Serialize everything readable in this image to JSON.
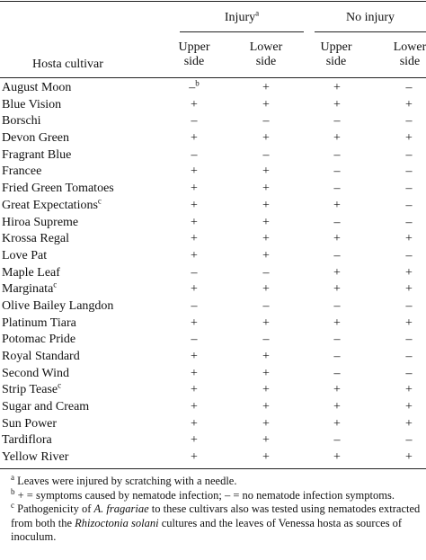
{
  "header": {
    "injury": "Injury",
    "injury_sup": "a",
    "no_injury": "No injury",
    "upper": [
      "Upper",
      "side"
    ],
    "lower": [
      "Lower",
      "side"
    ],
    "cultivar": "Hosta cultivar"
  },
  "rows": [
    {
      "name": "August Moon",
      "sup": "",
      "u1": "–",
      "u1_sup": "b",
      "l1": "+",
      "u2": "+",
      "l2": "–"
    },
    {
      "name": "Blue Vision",
      "sup": "",
      "u1": "+",
      "u1_sup": "",
      "l1": "+",
      "u2": "+",
      "l2": "+"
    },
    {
      "name": "Borschi",
      "sup": "",
      "u1": "–",
      "u1_sup": "",
      "l1": "–",
      "u2": "–",
      "l2": "–"
    },
    {
      "name": "Devon Green",
      "sup": "",
      "u1": "+",
      "u1_sup": "",
      "l1": "+",
      "u2": "+",
      "l2": "+"
    },
    {
      "name": "Fragrant Blue",
      "sup": "",
      "u1": "–",
      "u1_sup": "",
      "l1": "–",
      "u2": "–",
      "l2": "–"
    },
    {
      "name": "Francee",
      "sup": "",
      "u1": "+",
      "u1_sup": "",
      "l1": "+",
      "u2": "–",
      "l2": "–"
    },
    {
      "name": "Fried Green Tomatoes",
      "sup": "",
      "u1": "+",
      "u1_sup": "",
      "l1": "+",
      "u2": "–",
      "l2": "–"
    },
    {
      "name": "Great Expectations",
      "sup": "c",
      "u1": "+",
      "u1_sup": "",
      "l1": "+",
      "u2": "+",
      "l2": "–"
    },
    {
      "name": "Hiroa Supreme",
      "sup": "",
      "u1": "+",
      "u1_sup": "",
      "l1": "+",
      "u2": "–",
      "l2": "–"
    },
    {
      "name": "Krossa Regal",
      "sup": "",
      "u1": "+",
      "u1_sup": "",
      "l1": "+",
      "u2": "+",
      "l2": "+"
    },
    {
      "name": "Love Pat",
      "sup": "",
      "u1": "+",
      "u1_sup": "",
      "l1": "+",
      "u2": "–",
      "l2": "–"
    },
    {
      "name": "Maple Leaf",
      "sup": "",
      "u1": "–",
      "u1_sup": "",
      "l1": "–",
      "u2": "+",
      "l2": "+"
    },
    {
      "name": "Marginata",
      "sup": "c",
      "u1": "+",
      "u1_sup": "",
      "l1": "+",
      "u2": "+",
      "l2": "+"
    },
    {
      "name": "Olive Bailey Langdon",
      "sup": "",
      "u1": "–",
      "u1_sup": "",
      "l1": "–",
      "u2": "–",
      "l2": "–"
    },
    {
      "name": "Platinum Tiara",
      "sup": "",
      "u1": "+",
      "u1_sup": "",
      "l1": "+",
      "u2": "+",
      "l2": "+"
    },
    {
      "name": "Potomac Pride",
      "sup": "",
      "u1": "–",
      "u1_sup": "",
      "l1": "–",
      "u2": "–",
      "l2": "–"
    },
    {
      "name": "Royal Standard",
      "sup": "",
      "u1": "+",
      "u1_sup": "",
      "l1": "+",
      "u2": "–",
      "l2": "–"
    },
    {
      "name": "Second Wind",
      "sup": "",
      "u1": "+",
      "u1_sup": "",
      "l1": "+",
      "u2": "–",
      "l2": "–"
    },
    {
      "name": "Strip Tease",
      "sup": "c",
      "u1": "+",
      "u1_sup": "",
      "l1": "+",
      "u2": "+",
      "l2": "+"
    },
    {
      "name": "Sugar and Cream",
      "sup": "",
      "u1": "+",
      "u1_sup": "",
      "l1": "+",
      "u2": "+",
      "l2": "+"
    },
    {
      "name": "Sun Power",
      "sup": "",
      "u1": "+",
      "u1_sup": "",
      "l1": "+",
      "u2": "+",
      "l2": "+"
    },
    {
      "name": "Tardiflora",
      "sup": "",
      "u1": "+",
      "u1_sup": "",
      "l1": "+",
      "u2": "–",
      "l2": "–"
    },
    {
      "name": "Yellow River",
      "sup": "",
      "u1": "+",
      "u1_sup": "",
      "l1": "+",
      "u2": "+",
      "l2": "+"
    }
  ],
  "footnotes": {
    "a_mark": "a",
    "a_text": "Leaves were injured by scratching with a needle.",
    "b_mark": "b",
    "b_text": "+ = symptoms caused by nematode infection; – = no nematode infection symptoms.",
    "c_mark": "c",
    "c_text_1": "Pathogenicity of ",
    "c_italic_1": "A. fragariae",
    "c_text_2": " to these cultivars also was tested using nematodes extracted from both the ",
    "c_italic_2": "Rhizoctonia solani",
    "c_text_3": " cultures and the leaves of Venessa hosta as sources of inoculum."
  }
}
